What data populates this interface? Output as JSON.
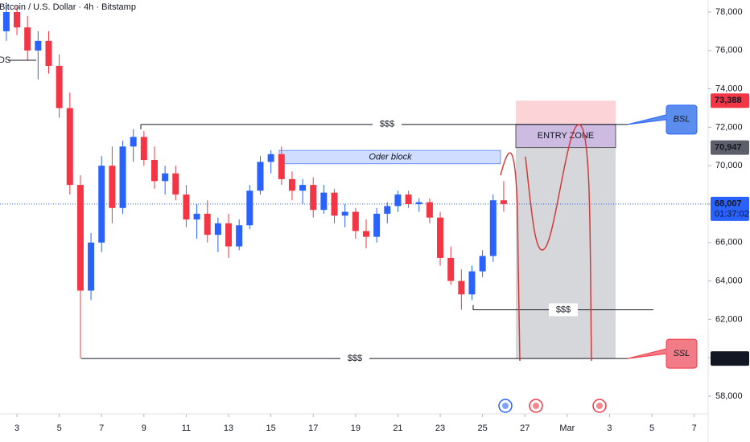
{
  "chart_data": {
    "type": "candlestick",
    "title": "Bitcoin / U.S. Dollar · 4h · Bitstamp",
    "side_label": "DS",
    "x": [
      2.5,
      3,
      3.5,
      4,
      4.5,
      5,
      5.5,
      6,
      6.5,
      7,
      7.5,
      8,
      8.5,
      9,
      9.5,
      10,
      10.5,
      11,
      11.5,
      12,
      12.5,
      13,
      13.5,
      14,
      14.5,
      15,
      15.5,
      16,
      16.5,
      17,
      17.5,
      18,
      18.5,
      19,
      19.5,
      20,
      20.5,
      21,
      21.5,
      22,
      22.5,
      23,
      23.5,
      24,
      24.5,
      25,
      25.5,
      26
    ],
    "open": [
      77000,
      78000,
      77200,
      76000,
      76500,
      75200,
      73000,
      69000,
      63500,
      66000,
      70000,
      67800,
      71000,
      71500,
      70300,
      69200,
      69600,
      68500,
      67200,
      67500,
      66400,
      67000,
      65800,
      66900,
      68700,
      70200,
      70600,
      69300,
      68700,
      69000,
      67700,
      68600,
      67400,
      67600,
      66600,
      66300,
      67500,
      67900,
      68500,
      68000,
      68100,
      67300,
      65200,
      64000,
      63300,
      64500,
      65300,
      68200
    ],
    "high": [
      78500,
      78300,
      77800,
      77000,
      77000,
      75800,
      73800,
      69500,
      66500,
      70500,
      71000,
      71300,
      71900,
      71800,
      71000,
      70000,
      70000,
      69000,
      68000,
      68200,
      67300,
      67500,
      67200,
      69000,
      70500,
      70800,
      71000,
      69700,
      69300,
      69400,
      69000,
      68800,
      68000,
      67800,
      67200,
      67800,
      68100,
      68700,
      68700,
      68300,
      68300,
      67600,
      65800,
      64600,
      64800,
      65600,
      68500,
      69200
    ],
    "low": [
      76500,
      76800,
      75500,
      74500,
      74800,
      72500,
      68500,
      59964,
      63000,
      65500,
      67000,
      67500,
      70200,
      70000,
      68800,
      68500,
      68200,
      66800,
      66200,
      66000,
      65500,
      65200,
      65600,
      66700,
      68500,
      69600,
      69000,
      68200,
      68000,
      67300,
      67500,
      67000,
      66800,
      66200,
      65700,
      66000,
      67000,
      67600,
      67800,
      67600,
      67000,
      64800,
      63800,
      62500,
      63000,
      64200,
      65000,
      67600
    ],
    "close": [
      78000,
      77200,
      76000,
      76500,
      75200,
      73000,
      69000,
      63500,
      66000,
      70000,
      67800,
      71000,
      71500,
      70300,
      69200,
      69600,
      68500,
      67200,
      67500,
      66400,
      67000,
      65800,
      66900,
      68700,
      70200,
      70600,
      69300,
      68700,
      69000,
      67700,
      68600,
      67400,
      67600,
      66600,
      66300,
      67500,
      67900,
      68500,
      68000,
      68100,
      67300,
      65200,
      64000,
      63300,
      64500,
      65300,
      68200,
      68007
    ],
    "up_color": "#2962ff",
    "down_color": "#f23645",
    "xlim": [
      2.2,
      35.66
    ],
    "ylim": [
      57080,
      78628
    ],
    "xticks": [
      3,
      5,
      7,
      9,
      11,
      13,
      15,
      17,
      19,
      21,
      23,
      25,
      27,
      {
        "value": 29,
        "label": "Mar"
      },
      {
        "value": 31,
        "label": "3"
      },
      {
        "value": 33,
        "label": "5"
      },
      {
        "value": 35,
        "label": "7"
      }
    ],
    "yticks": [
      {
        "value": 58000,
        "label": "58,000"
      },
      {
        "value": 60000,
        "label": "60,000"
      },
      {
        "value": 62000,
        "label": "62,000"
      },
      {
        "value": 64000,
        "label": "64,000"
      },
      {
        "value": 66000,
        "label": "66,000"
      },
      {
        "value": 68000,
        "label": "68,000"
      },
      {
        "value": 70000,
        "label": "70,000"
      },
      {
        "value": 72000,
        "label": "72,000"
      },
      {
        "value": 74000,
        "label": "74,000"
      },
      {
        "value": 76000,
        "label": "76,000"
      },
      {
        "value": 78000,
        "label": "78,000"
      }
    ],
    "price_labels": [
      {
        "value": 73388,
        "label": "73,388",
        "color": "#f23645"
      },
      {
        "value": 70947,
        "label": "70,947",
        "color": "#5d606b"
      },
      {
        "value": 68007,
        "label": "68,007",
        "color": "#2962ff"
      },
      {
        "value": 59964,
        "label": "59,964",
        "color": "#131722"
      }
    ],
    "countdown": "01:37:02",
    "lines": [
      {
        "label": "$$$",
        "value": 72150,
        "color": "#2962ff"
      },
      {
        "label": "$$$",
        "value": 62500,
        "color": "#f23645"
      },
      {
        "label": "$$$",
        "value": 59964,
        "color": "#f23645"
      }
    ],
    "order_block": {
      "label": "Oder block",
      "low": 70100,
      "high": 70800
    },
    "entry_zone": {
      "label": "ENTRY ZONE"
    },
    "bsl": "BSL",
    "ssl": "SSL"
  }
}
